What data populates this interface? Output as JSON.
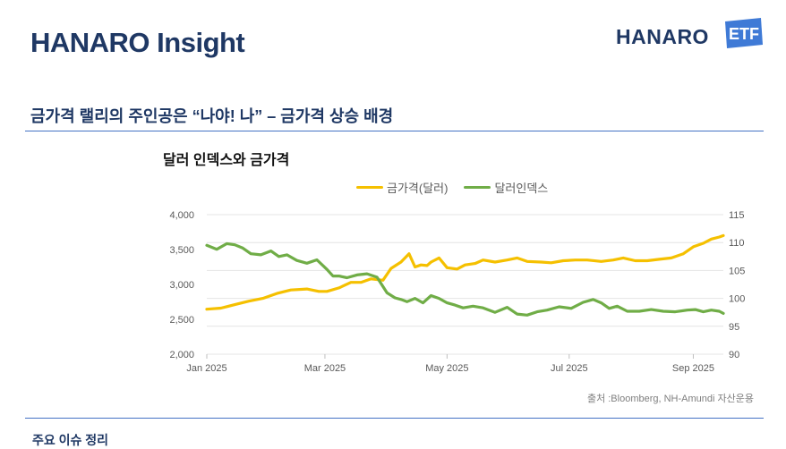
{
  "header": {
    "title": "HANARO Insight",
    "logo_text": "HANARO",
    "logo_badge": "ETF"
  },
  "section": {
    "subtitle": "금가격 랠리의 주인공은 “나야! 나” – 금가격 상승 배경",
    "next_heading": "주요 이슈 정리"
  },
  "colors": {
    "navy": "#1f3864",
    "accent": "#4472c4",
    "gold": "#f5c000",
    "green": "#70ad47",
    "badge": "#3f7ad6"
  },
  "chart_data": {
    "type": "line",
    "title": "달러 인덱스와 금가격",
    "source": "출처 :Bloomberg, NH-Amundi 자산운용",
    "x_tick_labels": [
      "Jan 2025",
      "Mar 2025",
      "May 2025",
      "Jul 2025",
      "Sep 2025"
    ],
    "x_tick_days": [
      0,
      59,
      120,
      181,
      243
    ],
    "x_range_days": [
      0,
      258
    ],
    "left_axis": {
      "min": 2000,
      "max": 4000,
      "ticks": [
        "2,000",
        "2,500",
        "3,000",
        "3,500",
        "4,000"
      ],
      "values": [
        2000,
        2500,
        3000,
        3500,
        4000
      ]
    },
    "right_axis": {
      "min": 90,
      "max": 115,
      "ticks": [
        "90",
        "95",
        "100",
        "105",
        "110",
        "115"
      ],
      "values": [
        90,
        95,
        100,
        105,
        110,
        115
      ]
    },
    "series": [
      {
        "name": "금가격(달러)",
        "axis": "left",
        "color": "#f5c000",
        "x": [
          0,
          7,
          14,
          21,
          28,
          35,
          42,
          50,
          56,
          60,
          66,
          72,
          77,
          82,
          88,
          92,
          97,
          101,
          104,
          107,
          110,
          112,
          116,
          120,
          125,
          129,
          134,
          138,
          144,
          150,
          155,
          160,
          167,
          172,
          178,
          184,
          190,
          197,
          203,
          208,
          214,
          220,
          226,
          232,
          238,
          243,
          248,
          252,
          256,
          258
        ],
        "values": [
          2645,
          2660,
          2710,
          2760,
          2800,
          2870,
          2920,
          2935,
          2900,
          2900,
          2950,
          3030,
          3030,
          3080,
          3060,
          3230,
          3320,
          3440,
          3250,
          3280,
          3270,
          3320,
          3380,
          3240,
          3220,
          3280,
          3300,
          3350,
          3320,
          3350,
          3380,
          3330,
          3320,
          3310,
          3340,
          3350,
          3350,
          3330,
          3350,
          3380,
          3340,
          3340,
          3360,
          3380,
          3440,
          3540,
          3590,
          3650,
          3680,
          3700
        ]
      },
      {
        "name": "달러인덱스",
        "axis": "right",
        "color": "#70ad47",
        "x": [
          0,
          5,
          10,
          14,
          18,
          22,
          27,
          32,
          36,
          40,
          45,
          50,
          55,
          60,
          63,
          66,
          70,
          75,
          80,
          85,
          90,
          94,
          97,
          100,
          104,
          108,
          112,
          116,
          120,
          124,
          128,
          133,
          138,
          144,
          150,
          155,
          160,
          165,
          170,
          176,
          182,
          188,
          193,
          197,
          201,
          205,
          210,
          216,
          222,
          228,
          234,
          240,
          244,
          248,
          252,
          256,
          258
        ],
        "values": [
          109.5,
          108.8,
          109.8,
          109.6,
          109.0,
          108.0,
          107.8,
          108.5,
          107.5,
          107.8,
          106.8,
          106.3,
          106.9,
          105.2,
          104.0,
          104.0,
          103.7,
          104.2,
          104.4,
          103.8,
          101.0,
          100.1,
          99.8,
          99.4,
          100.0,
          99.2,
          100.5,
          100.0,
          99.2,
          98.8,
          98.3,
          98.6,
          98.3,
          97.5,
          98.4,
          97.2,
          97.0,
          97.6,
          97.9,
          98.5,
          98.2,
          99.3,
          99.8,
          99.2,
          98.2,
          98.6,
          97.7,
          97.7,
          98.0,
          97.7,
          97.6,
          97.9,
          98.0,
          97.6,
          97.9,
          97.7,
          97.3
        ]
      }
    ]
  }
}
